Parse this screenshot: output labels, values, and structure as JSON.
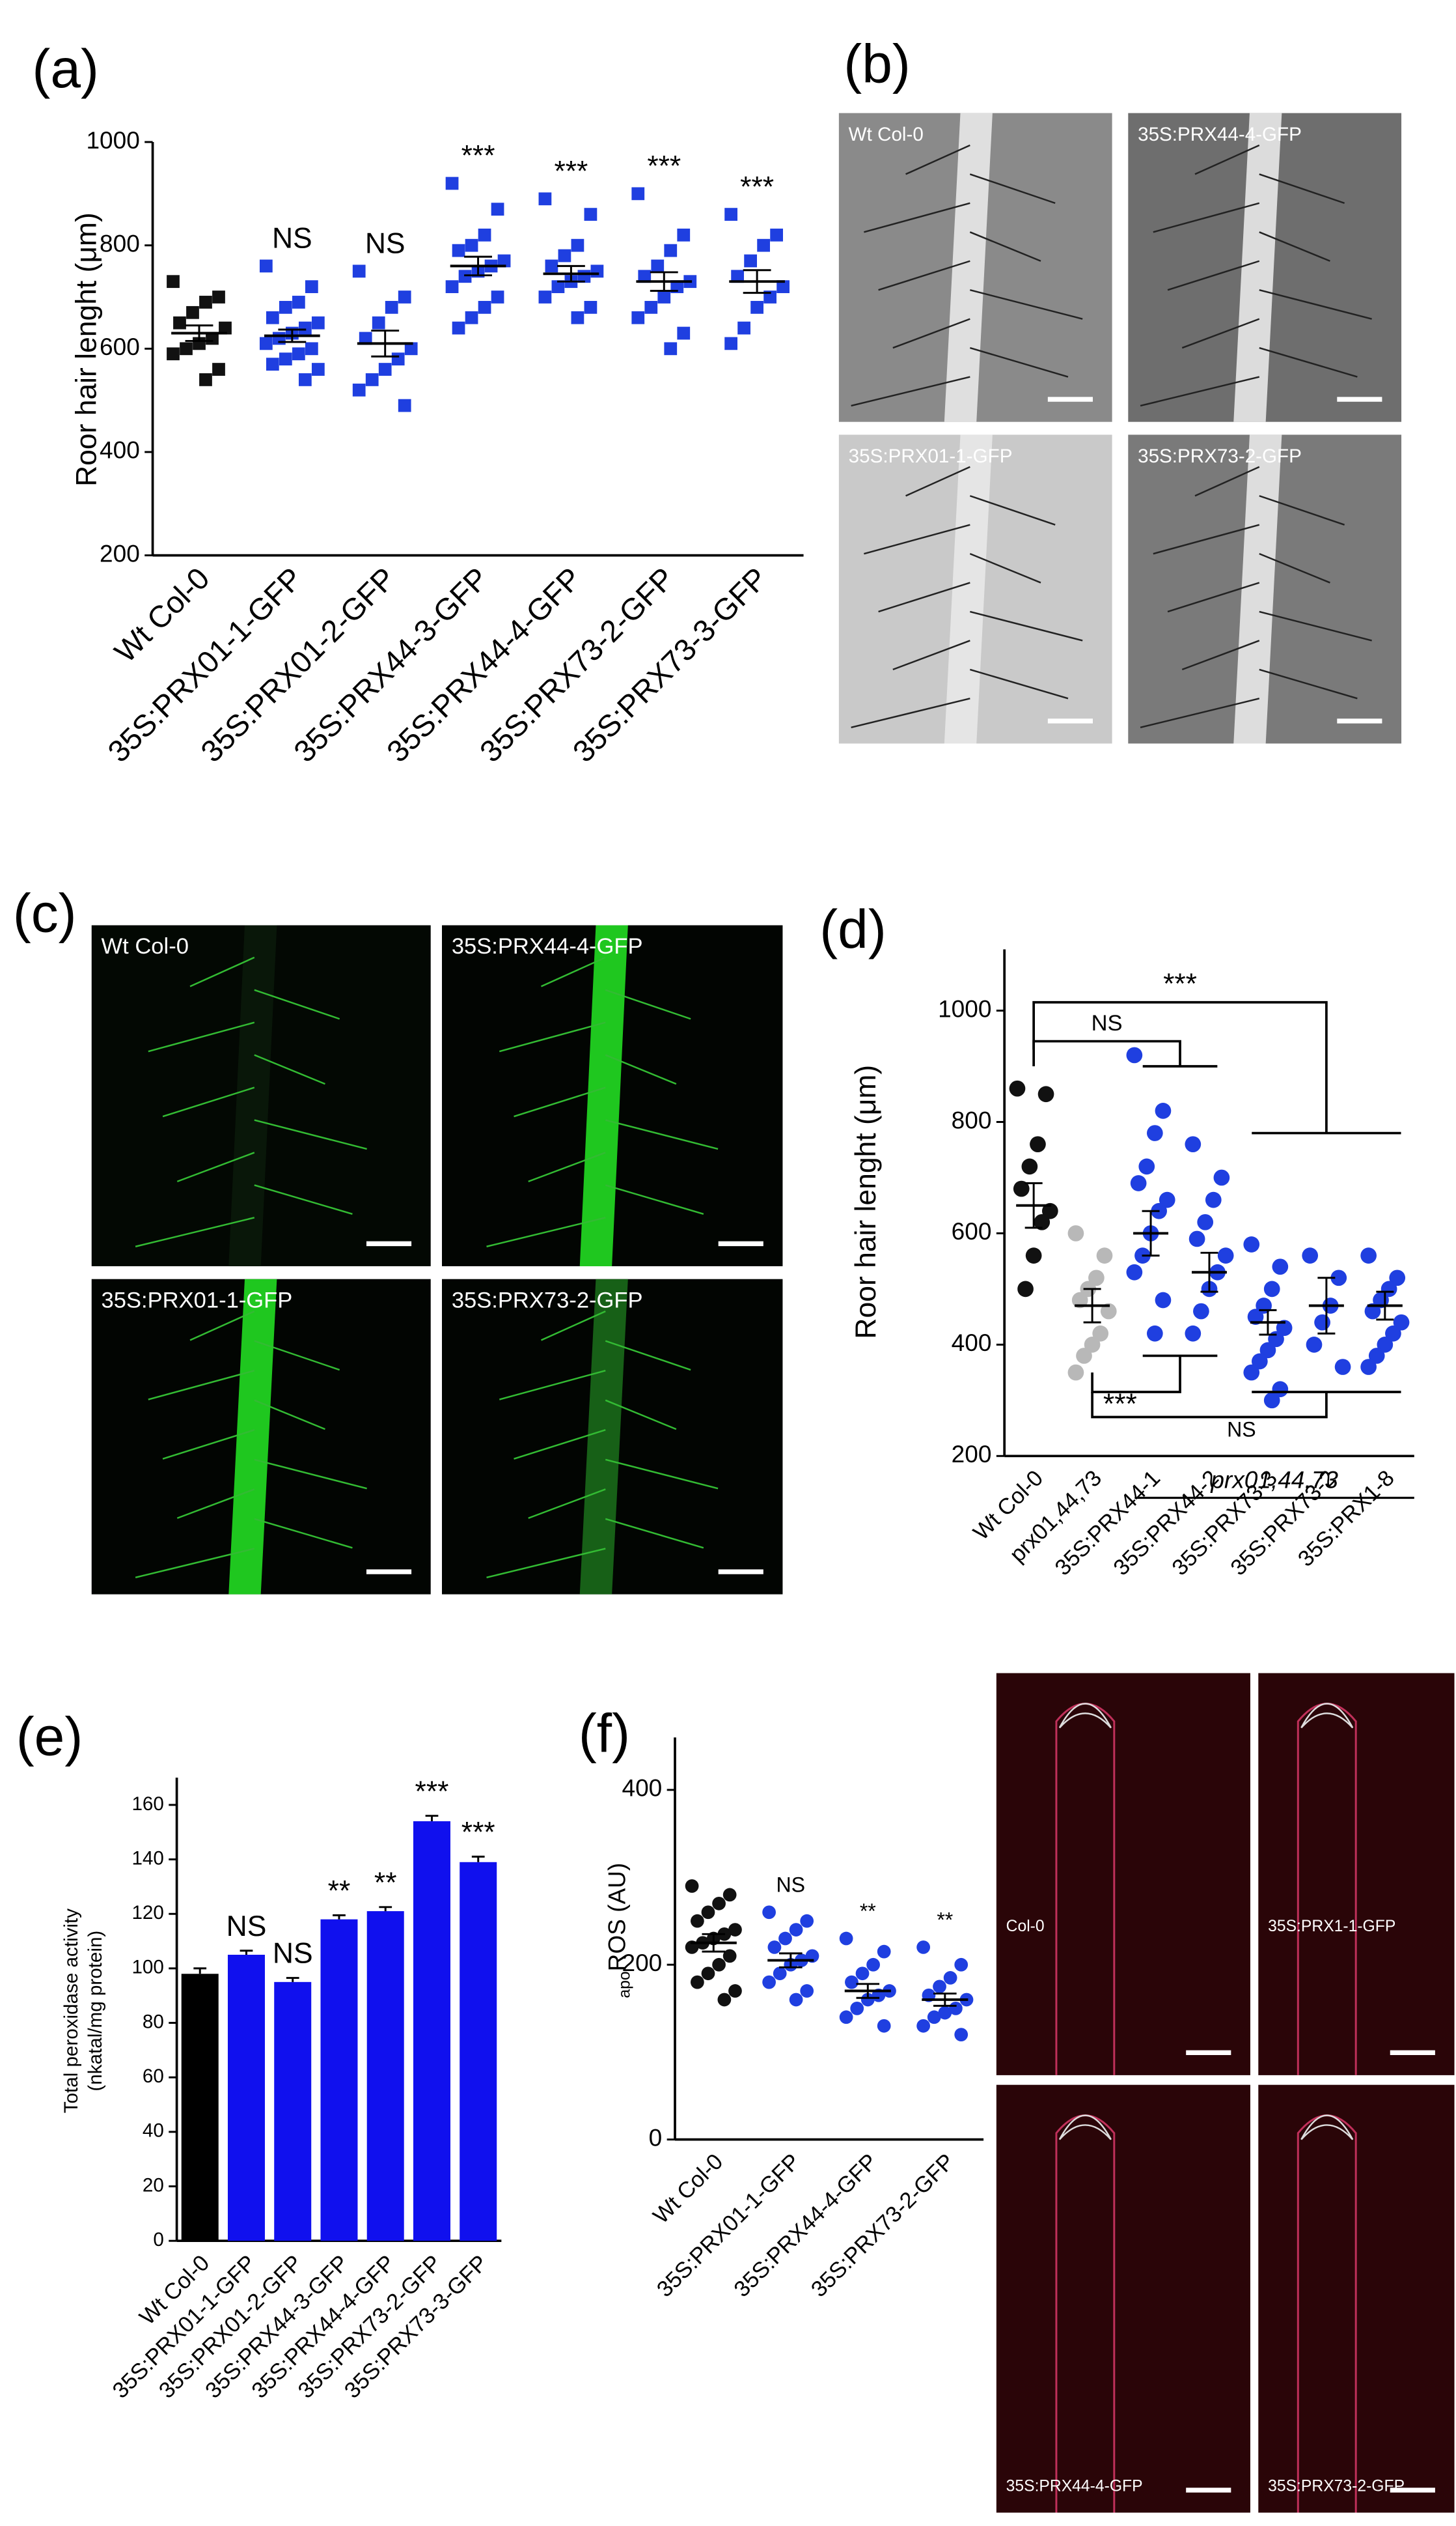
{
  "chart_data": [
    {
      "type": "strip",
      "panel_label": "(a)",
      "y_label": "Roor hair lenght (μm)",
      "marker": "square",
      "categories": [
        "Wt Col-0",
        "35S:PRX01-1-GFP",
        "35S:PRX01-2-GFP",
        "35S:PRX44-3-GFP",
        "35S:PRX44-4-GFP",
        "35S:PRX73-2-GFP",
        "35S:PRX73-3-GFP"
      ],
      "colors": [
        "#111111",
        "#1f3fe0",
        "#1f3fe0",
        "#1f3fe0",
        "#1f3fe0",
        "#1f3fe0",
        "#1f3fe0"
      ],
      "points": [
        [
          730,
          700,
          690,
          670,
          650,
          640,
          620,
          610,
          600,
          590,
          560,
          540
        ],
        [
          760,
          720,
          690,
          680,
          660,
          650,
          640,
          630,
          620,
          610,
          600,
          590,
          580,
          570,
          560,
          540
        ],
        [
          750,
          700,
          680,
          650,
          620,
          600,
          580,
          560,
          540,
          520,
          490
        ],
        [
          920,
          870,
          820,
          800,
          790,
          770,
          760,
          750,
          740,
          720,
          700,
          680,
          660,
          640
        ],
        [
          890,
          860,
          800,
          780,
          760,
          750,
          740,
          730,
          720,
          700,
          680,
          660
        ],
        [
          900,
          820,
          790,
          760,
          740,
          730,
          720,
          700,
          680,
          660,
          630,
          600
        ],
        [
          860,
          820,
          800,
          770,
          740,
          720,
          700,
          680,
          640,
          610
        ]
      ],
      "means": [
        630,
        625,
        610,
        760,
        745,
        730,
        730
      ],
      "errors": [
        15,
        12,
        25,
        18,
        15,
        18,
        22
      ],
      "annotations": [
        null,
        "NS",
        "NS",
        "***",
        "***",
        "***",
        "***"
      ],
      "ylim": [
        200,
        1000
      ],
      "yticks": [
        200,
        400,
        600,
        800,
        1000
      ]
    },
    {
      "type": "strip",
      "panel_label": "(d)",
      "y_label": "Roor hair lenght (μm)",
      "marker": "circle",
      "categories": [
        "Wt Col-0",
        "prx01,44,73",
        "35S:PRX44-1",
        "35S:PRX44-2",
        "35S:PRX73-3",
        "35S:PRX73-2",
        "35S:PRX1-8"
      ],
      "group_label": "prx01,44,73",
      "colors": [
        "#111111",
        "#b8b8b8",
        "#1f3fe0",
        "#1f3fe0",
        "#1f3fe0",
        "#1f3fe0",
        "#1f3fe0"
      ],
      "points": [
        [
          860,
          850,
          760,
          720,
          680,
          640,
          620,
          560,
          500
        ],
        [
          600,
          560,
          520,
          500,
          480,
          460,
          420,
          400,
          380,
          350
        ],
        [
          920,
          820,
          780,
          720,
          690,
          660,
          640,
          600,
          560,
          530,
          480,
          420
        ],
        [
          760,
          700,
          660,
          620,
          590,
          560,
          530,
          500,
          460,
          420
        ],
        [
          580,
          540,
          500,
          470,
          450,
          430,
          410,
          390,
          370,
          350,
          320,
          300
        ],
        [
          560,
          520,
          470,
          440,
          400,
          360
        ],
        [
          560,
          520,
          500,
          480,
          460,
          440,
          420,
          400,
          380,
          360
        ]
      ],
      "means": [
        650,
        470,
        600,
        530,
        440,
        470,
        470
      ],
      "errors": [
        40,
        30,
        40,
        35,
        22,
        50,
        25
      ],
      "comparisons": [
        "NS",
        "***",
        "***",
        "NS"
      ],
      "ylim": [
        200,
        1110
      ],
      "yticks": [
        200,
        400,
        600,
        800,
        1000
      ]
    },
    {
      "type": "bar",
      "panel_label": "(e)",
      "y_label": [
        "Total peroxidase activity",
        "(nkatal/mg protein)"
      ],
      "color": "#1010ee",
      "first_color": "#000000",
      "categories": [
        "Wt Col-0",
        "35S:PRX01-1-GFP",
        "35S:PRX01-2-GFP",
        "35S:PRX44-3-GFP",
        "35S:PRX44-4-GFP",
        "35S:PRX73-2-GFP",
        "35S:PRX73-3-GFP"
      ],
      "values": [
        98,
        105,
        95,
        118,
        121,
        154,
        139
      ],
      "errors": [
        2,
        1.5,
        1.5,
        1.5,
        1.5,
        2,
        2
      ],
      "annotations": [
        null,
        "NS",
        "NS",
        "**",
        "**",
        "***",
        "***"
      ],
      "ylim": [
        0,
        170
      ],
      "yticks": [
        0,
        20,
        40,
        60,
        80,
        100,
        120,
        140,
        160
      ]
    },
    {
      "type": "strip",
      "panel_label": "(f)",
      "y_label": [
        "apo",
        "ROS (AU)"
      ],
      "marker": "circle",
      "categories": [
        "Wt Col-0",
        "35S:PRX01-1-GFP",
        "35S:PRX44-4-GFP",
        "35S:PRX73-2-GFP"
      ],
      "colors": [
        "#111111",
        "#1f3fe0",
        "#1f3fe0",
        "#1f3fe0"
      ],
      "points": [
        [
          290,
          280,
          270,
          260,
          250,
          240,
          235,
          230,
          225,
          220,
          210,
          200,
          190,
          180,
          170,
          160
        ],
        [
          260,
          250,
          240,
          230,
          220,
          210,
          205,
          200,
          190,
          180,
          170,
          160
        ],
        [
          230,
          215,
          200,
          190,
          180,
          170,
          165,
          160,
          150,
          140,
          130
        ],
        [
          220,
          200,
          185,
          175,
          165,
          160,
          150,
          145,
          140,
          130,
          120
        ]
      ],
      "means": [
        225,
        205,
        170,
        160
      ],
      "errors": [
        10,
        8,
        8,
        7
      ],
      "annotations": [
        null,
        "NS",
        "**",
        "**"
      ],
      "ylim": [
        0,
        460
      ],
      "yticks": [
        0,
        200,
        400
      ]
    }
  ],
  "image_panels": [
    {
      "panel_label": "(b)",
      "labels": [
        "Wt Col-0",
        "35S:PRX44-4-GFP",
        "35S:PRX01-1-GFP",
        "35S:PRX73-2-GFP"
      ]
    },
    {
      "panel_label": "(c)",
      "labels": [
        "Wt Col-0",
        "35S:PRX44-4-GFP",
        "35S:PRX01-1-GFP",
        "35S:PRX73-2-GFP"
      ]
    },
    {
      "labels": [
        "Col-0",
        "35S:PRX1-1-GFP",
        "35S:PRX44-4-GFP",
        "35S:PRX73-2-GFP"
      ]
    }
  ]
}
